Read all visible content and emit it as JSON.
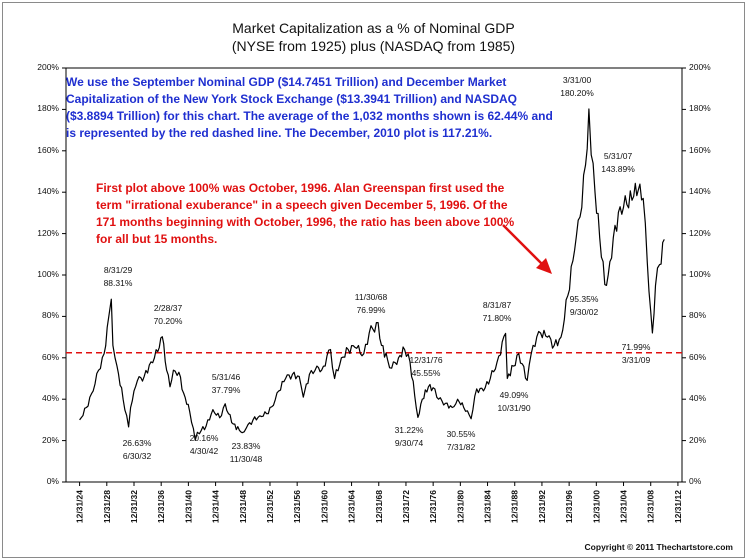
{
  "chart_data": {
    "type": "line",
    "title": "Market Capitalization as a % of Nominal GDP",
    "subtitle": "(NYSE from 1925) plus (NASDAQ from 1985)",
    "y_ticks": [
      "0%",
      "20%",
      "40%",
      "60%",
      "80%",
      "100%",
      "120%",
      "140%",
      "160%",
      "180%",
      "200%"
    ],
    "ylim": [
      0,
      200
    ],
    "x_ticks": [
      "12/31/24",
      "12/31/28",
      "12/31/32",
      "12/31/36",
      "12/31/40",
      "12/31/44",
      "12/31/48",
      "12/31/52",
      "12/31/56",
      "12/31/60",
      "12/31/64",
      "12/31/68",
      "12/31/72",
      "12/31/76",
      "12/31/80",
      "12/31/84",
      "12/31/88",
      "12/31/92",
      "12/31/96",
      "12/31/00",
      "12/31/04",
      "12/31/08",
      "12/31/12"
    ],
    "xlim": [
      1923.0,
      2013.6
    ],
    "average_line": 62.44,
    "series": [
      {
        "name": "",
        "x": [
          1925.0,
          1926.0,
          1927.0,
          1927.8,
          1928.6,
          1929.3,
          1929.66,
          1929.9,
          1930.5,
          1931.4,
          1932.2,
          1932.5,
          1933.0,
          1933.5,
          1934.5,
          1935.5,
          1936.5,
          1937.16,
          1937.8,
          1938.3,
          1938.8,
          1939.6,
          1940.3,
          1941.2,
          1942.0,
          1942.33,
          1942.9,
          1943.6,
          1944.6,
          1945.6,
          1946.41,
          1946.9,
          1947.6,
          1948.5,
          1948.91,
          1949.5,
          1950.5,
          1951.5,
          1952.5,
          1953.5,
          1954.3,
          1955.3,
          1956.3,
          1957.3,
          1957.9,
          1958.8,
          1959.9,
          1960.6,
          1961.9,
          1962.5,
          1963.5,
          1964.5,
          1965.5,
          1966.8,
          1967.6,
          1968.91,
          1969.4,
          1970.3,
          1970.9,
          1971.9,
          1972.8,
          1973.6,
          1974.75,
          1975.4,
          1976.3,
          1976.99,
          1977.8,
          1978.8,
          1979.8,
          1980.6,
          1981.5,
          1982.58,
          1983.4,
          1984.4,
          1985.4,
          1986.4,
          1987.66,
          1987.9,
          1988.8,
          1989.6,
          1990.83,
          1991.7,
          1992.8,
          1993.8,
          1994.8,
          1995.8,
          1996.8,
          1997.8,
          1998.6,
          1999.4,
          1999.9,
          2000.25,
          2000.8,
          2001.5,
          2002.25,
          2002.75,
          2003.5,
          2004.5,
          2005.5,
          2006.5,
          2007.41,
          2007.9,
          2008.5,
          2009.25,
          2009.7,
          2010.3,
          2010.99
        ],
        "values": [
          30,
          36,
          44,
          54,
          62,
          80,
          88.31,
          66,
          56,
          40,
          26.63,
          36,
          44,
          49,
          51,
          58,
          63,
          70.2,
          54,
          46,
          54,
          53,
          43,
          34,
          20.16,
          24,
          25,
          27,
          35,
          31,
          37.79,
          33,
          28,
          25,
          23.83,
          26,
          30,
          32,
          33,
          37,
          44,
          50,
          52,
          51,
          41,
          52,
          56,
          54,
          64,
          50,
          60,
          64,
          65,
          62,
          72,
          76.99,
          66,
          59,
          55,
          60,
          64,
          58,
          31.22,
          40,
          46,
          45.55,
          40,
          38,
          36,
          40,
          36,
          30.55,
          45,
          44,
          50,
          58,
          71.8,
          50,
          56,
          62,
          49.09,
          66,
          72,
          70,
          66,
          70,
          90,
          112,
          128,
          153,
          180.2,
          158,
          140,
          118,
          95.35,
          100,
          118,
          133,
          134,
          138,
          143.89,
          137,
          106,
          71.99,
          95,
          105,
          117.21
        ]
      }
    ],
    "annotations": [
      {
        "date": "8/31/29",
        "value": "88.31%"
      },
      {
        "date": "2/28/37",
        "value": "70.20%"
      },
      {
        "date": "6/30/32",
        "value": "26.63%"
      },
      {
        "date": "5/31/46",
        "value": "37.79%"
      },
      {
        "date": "4/30/42",
        "value": "20.16%"
      },
      {
        "date": "11/30/48",
        "value": "23.83%"
      },
      {
        "date": "11/30/68",
        "value": "76.99%"
      },
      {
        "date": "12/31/76",
        "value": "45.55%"
      },
      {
        "date": "9/30/74",
        "value": "31.22%"
      },
      {
        "date": "7/31/82",
        "value": "30.55%"
      },
      {
        "date": "8/31/87",
        "value": "71.80%"
      },
      {
        "date": "10/31/90",
        "value": "49.09%"
      },
      {
        "date": "3/31/00",
        "value": "180.20%"
      },
      {
        "date": "5/31/07",
        "value": "143.89%"
      },
      {
        "date": "9/30/02",
        "value": "95.35%"
      },
      {
        "date": "3/31/09",
        "value": "71.99%"
      }
    ],
    "grid": false,
    "colors": {
      "line": "#000000",
      "average": "#e01010",
      "blue_text": "#1f2fd0",
      "red_text": "#e01010"
    }
  },
  "text": {
    "blue_note": "We use the September Nominal GDP ($14.7451 Trillion) and December Market Capitalization of the New York Stock Exchange ($13.3941 Trillion) and NASDAQ ($3.8894 Trillion) for this chart.  The average of the 1,032 months shown is 62.44% and is represented by the red dashed line.  The December, 2010 plot is 117.21%.",
    "red_note": "First plot above 100% was October, 1996.  Alan Greenspan first used the term \"irrational exuberance\" in a speech given December 5, 1996.  Of the 171 months beginning with October, 1996, the ratio has been above 100% for all but 15 months.",
    "copyright": "Copyright © 2011 Thechartstore.com"
  }
}
